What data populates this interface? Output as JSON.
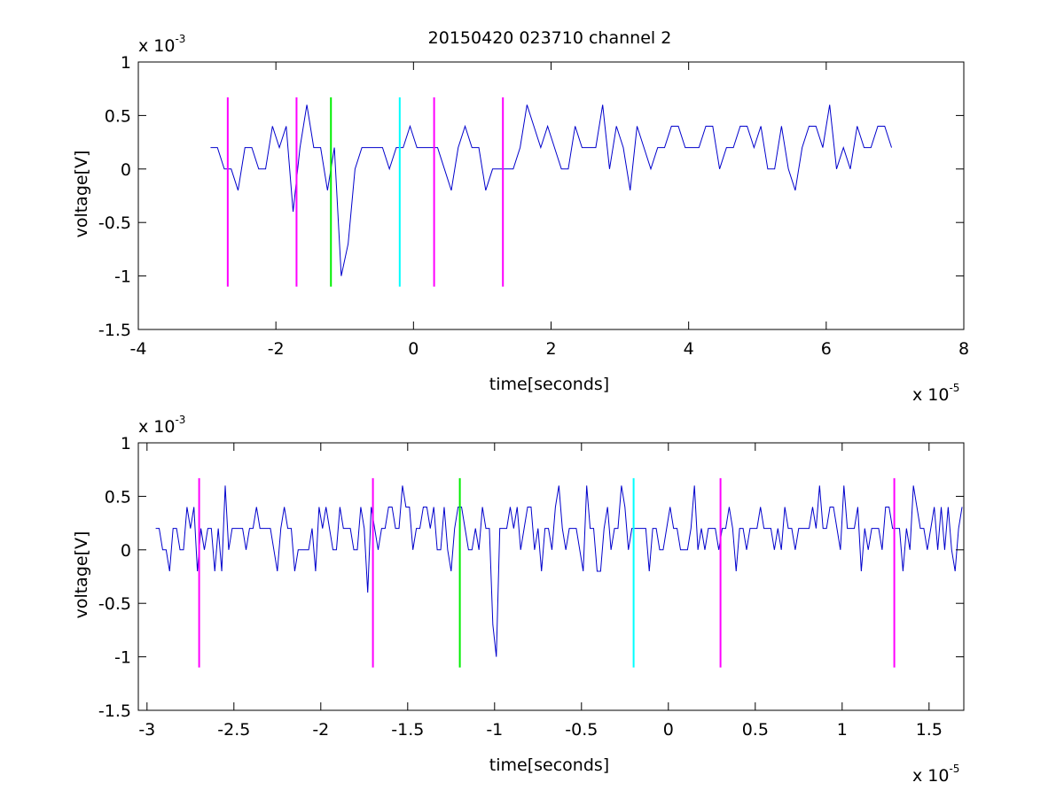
{
  "title": "20150420 023710 channel 2",
  "colors": {
    "signal": "#0000cc",
    "marker_magenta": "#ff00ff",
    "marker_green": "#00ee00",
    "marker_cyan": "#00ffff",
    "axis": "#000000",
    "background": "#ffffff"
  },
  "chart_data": [
    {
      "type": "line",
      "title": "20150420 023710 channel 2",
      "xlabel": "time[seconds]",
      "ylabel": "voltage[V]",
      "x_multiplier": {
        "base": "x 10",
        "exponent": "-5"
      },
      "y_multiplier": {
        "base": "x 10",
        "exponent": "-3"
      },
      "xlim": [
        -4,
        8
      ],
      "ylim": [
        -1.5,
        1
      ],
      "xticks": [
        -4,
        -2,
        0,
        2,
        4,
        6,
        8
      ],
      "xtick_labels": [
        "-4",
        "-2",
        "0",
        "2",
        "4",
        "6",
        "8"
      ],
      "yticks": [
        -1.5,
        -1,
        -0.5,
        0,
        0.5,
        1
      ],
      "ytick_labels": [
        "-1.5",
        "-1",
        "-0.5",
        "0",
        "0.5",
        "1"
      ],
      "grid": false,
      "signal": {
        "x_range": [
          -2.95,
          7.0
        ],
        "baseline_levels": [
          0,
          0.2,
          0.4
        ],
        "dips": [
          {
            "x": -1.75,
            "y": -0.4
          },
          {
            "x": -1.0,
            "y": -1.0
          },
          {
            "x": -0.95,
            "y": -0.7
          }
        ],
        "peaks": [
          {
            "x": -1.5,
            "y": 0.6
          },
          {
            "x": 1.7,
            "y": 0.6
          },
          {
            "x": 2.8,
            "y": 0.6
          },
          {
            "x": 6.0,
            "y": 0.6
          }
        ]
      },
      "markers": [
        {
          "x": -2.7,
          "color": "marker_magenta",
          "y_range": [
            -1.1,
            0.67
          ]
        },
        {
          "x": -1.7,
          "color": "marker_magenta",
          "y_range": [
            -1.1,
            0.67
          ]
        },
        {
          "x": -1.2,
          "color": "marker_green",
          "y_range": [
            -1.1,
            0.67
          ]
        },
        {
          "x": -0.2,
          "color": "marker_cyan",
          "y_range": [
            -1.1,
            0.67
          ]
        },
        {
          "x": 0.3,
          "color": "marker_magenta",
          "y_range": [
            -1.1,
            0.67
          ]
        },
        {
          "x": 1.3,
          "color": "marker_magenta",
          "y_range": [
            -1.1,
            0.67
          ]
        }
      ]
    },
    {
      "type": "line",
      "title": "",
      "xlabel": "time[seconds]",
      "ylabel": "voltage[V]",
      "x_multiplier": {
        "base": "x 10",
        "exponent": "-5"
      },
      "y_multiplier": {
        "base": "x 10",
        "exponent": "-3"
      },
      "xlim": [
        -3.05,
        1.7
      ],
      "ylim": [
        -1.5,
        1
      ],
      "xticks": [
        -3,
        -2.5,
        -2,
        -1.5,
        -1,
        -0.5,
        0,
        0.5,
        1,
        1.5
      ],
      "xtick_labels": [
        "-3",
        "-2.5",
        "-2",
        "-1.5",
        "-1",
        "-0.5",
        "0",
        "0.5",
        "1",
        "1.5"
      ],
      "yticks": [
        -1.5,
        -1,
        -0.5,
        0,
        0.5,
        1
      ],
      "ytick_labels": [
        "-1.5",
        "-1",
        "-0.5",
        "0",
        "0.5",
        "1"
      ],
      "grid": false,
      "signal": {
        "x_range": [
          -2.95,
          1.7
        ],
        "baseline_levels": [
          0,
          0.2,
          0.4
        ],
        "dips": [
          {
            "x": -1.73,
            "y": -0.4
          },
          {
            "x": -0.99,
            "y": -1.0
          },
          {
            "x": -1.01,
            "y": -0.7
          }
        ],
        "peaks": [
          {
            "x": -1.52,
            "y": 0.6
          },
          {
            "x": 0.15,
            "y": 0.6
          },
          {
            "x": 0.88,
            "y": 0.6
          }
        ]
      },
      "markers": [
        {
          "x": -2.7,
          "color": "marker_magenta",
          "y_range": [
            -1.1,
            0.67
          ]
        },
        {
          "x": -1.7,
          "color": "marker_magenta",
          "y_range": [
            -1.1,
            0.67
          ]
        },
        {
          "x": -1.2,
          "color": "marker_green",
          "y_range": [
            -1.1,
            0.67
          ]
        },
        {
          "x": -0.2,
          "color": "marker_cyan",
          "y_range": [
            -1.1,
            0.67
          ]
        },
        {
          "x": 0.3,
          "color": "marker_magenta",
          "y_range": [
            -1.1,
            0.67
          ]
        },
        {
          "x": 1.3,
          "color": "marker_magenta",
          "y_range": [
            -1.1,
            0.67
          ]
        }
      ]
    }
  ]
}
